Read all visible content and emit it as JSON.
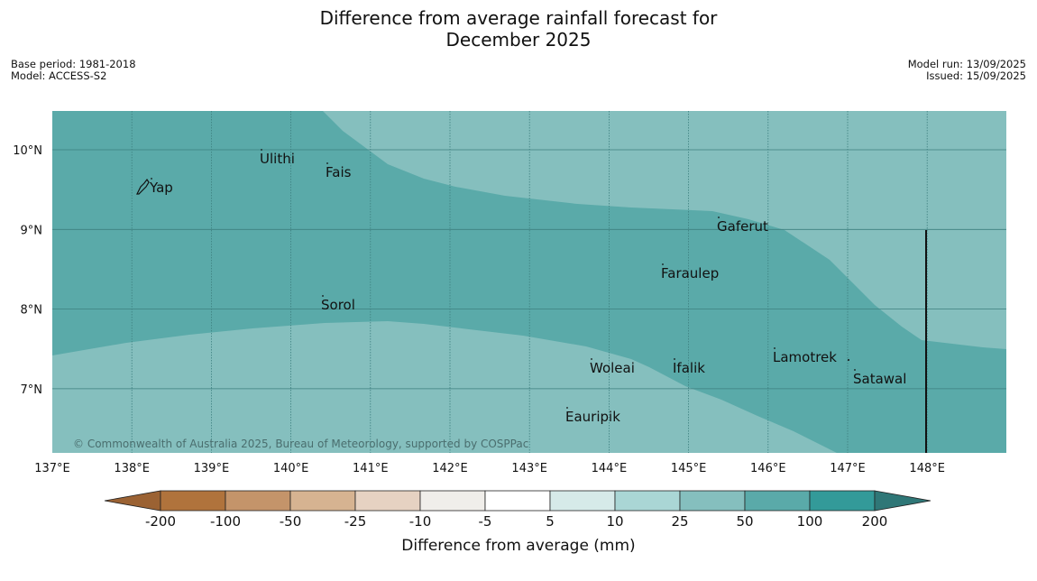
{
  "title": {
    "line1": "Difference from average rainfall forecast for",
    "line2": "December 2025"
  },
  "meta": {
    "base_period": "Base period: 1981-2018",
    "model": "Model: ACCESS-S2",
    "model_run": "Model run: 13/09/2025",
    "issued": "Issued: 15/09/2025"
  },
  "map": {
    "lon_range": [
      137,
      149
    ],
    "lat_range": [
      6.2,
      10.5
    ],
    "lon_ticks": [
      "137°E",
      "138°E",
      "139°E",
      "140°E",
      "141°E",
      "142°E",
      "143°E",
      "144°E",
      "145°E",
      "146°E",
      "147°E",
      "148°E"
    ],
    "lat_ticks": [
      "10°N",
      "9°N",
      "8°N",
      "7°N"
    ],
    "colors": {
      "band_50_100": "#5aaaa9",
      "band_25_50": "#85bfbe",
      "gridline": "#3d7f7f",
      "boundary_line": "#111111"
    },
    "places": [
      {
        "name": "Yap",
        "lon": 138.2,
        "lat": 9.5
      },
      {
        "name": "Ulithi",
        "lon": 139.8,
        "lat": 9.9
      },
      {
        "name": "Fais",
        "lon": 140.5,
        "lat": 9.75
      },
      {
        "name": "Gaferut",
        "lon": 145.4,
        "lat": 9.1
      },
      {
        "name": "Faraulep",
        "lon": 144.7,
        "lat": 8.45
      },
      {
        "name": "Sorol",
        "lon": 140.4,
        "lat": 8.05
      },
      {
        "name": "Woleai",
        "lon": 143.9,
        "lat": 7.3
      },
      {
        "name": "Ifalik",
        "lon": 144.8,
        "lat": 7.25
      },
      {
        "name": "Lamotrek",
        "lon": 146.3,
        "lat": 7.4
      },
      {
        "name": "Satawal",
        "lon": 147.0,
        "lat": 7.15
      },
      {
        "name": "Eauripik",
        "lon": 143.1,
        "lat": 6.7
      }
    ],
    "copyright": "© Commonwealth of Australia 2025, Bureau of Meteorology, supported by COSPPac"
  },
  "colorbar": {
    "title": "Difference from average (mm)",
    "tick_labels": [
      "-200",
      "-100",
      "-50",
      "-25",
      "-10",
      "-5",
      "5",
      "10",
      "25",
      "50",
      "100",
      "200"
    ],
    "colors": [
      "#9b6233",
      "#b0733c",
      "#c4946a",
      "#d6b391",
      "#e6d2c2",
      "#f0eeea",
      "#ffffff",
      "#d6eae9",
      "#aad6d5",
      "#85bfbe",
      "#5aaaa9",
      "#339a99",
      "#2f7777"
    ]
  }
}
